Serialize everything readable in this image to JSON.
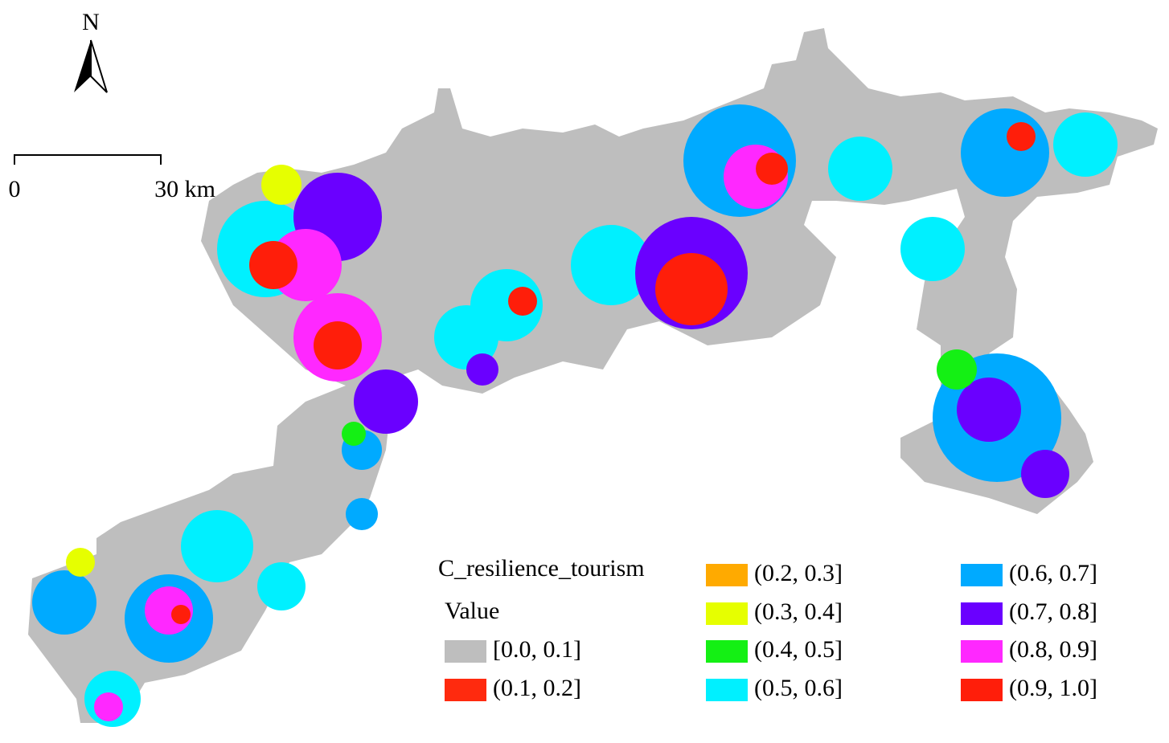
{
  "north_arrow": "N",
  "scale_bar": {
    "start": "0",
    "end": "30 km"
  },
  "legend": {
    "title": "C_resilience_tourism",
    "subtitle": "Value",
    "items": [
      {
        "label": "[0.0, 0.1]",
        "color": "#bebebe"
      },
      {
        "label": "(0.1, 0.2]",
        "color": "#ff2a0e"
      },
      {
        "label": "(0.2, 0.3]",
        "color": "#ffaa00"
      },
      {
        "label": "(0.3, 0.4]",
        "color": "#e6ff00"
      },
      {
        "label": "(0.4, 0.5]",
        "color": "#14f014"
      },
      {
        "label": "(0.5, 0.6]",
        "color": "#00f0ff"
      },
      {
        "label": "(0.6, 0.7]",
        "color": "#00aaff"
      },
      {
        "label": "(0.7, 0.8]",
        "color": "#6a00ff"
      },
      {
        "label": "(0.8, 0.9]",
        "color": "#ff28ff"
      },
      {
        "label": "(0.9, 1.0]",
        "color": "#ff1e0a"
      }
    ]
  }
}
